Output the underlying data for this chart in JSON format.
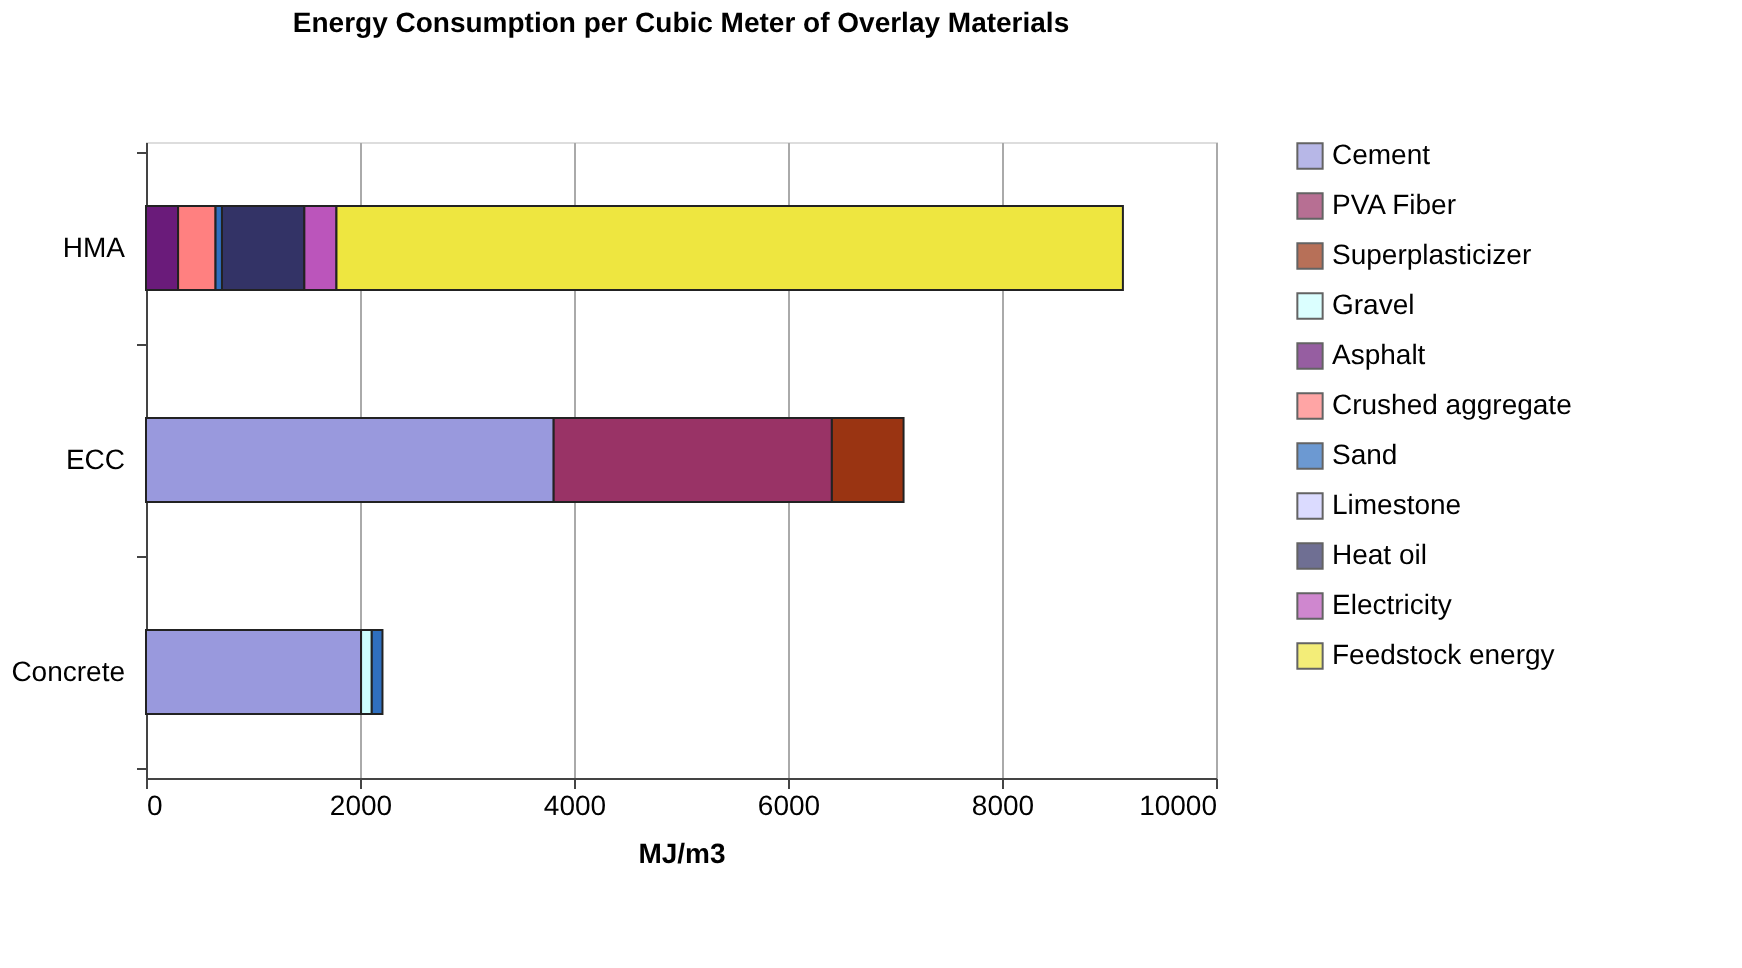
{
  "chart_data": {
    "type": "bar",
    "orientation": "horizontal",
    "stacked": true,
    "title": "Energy Consumption per Cubic Meter of Overlay Materials",
    "xlabel": "MJ/m3",
    "categories": [
      "HMA",
      "ECC",
      "Concrete"
    ],
    "series": [
      {
        "name": "Cement",
        "color": "#9999dd",
        "values": [
          null,
          3810,
          2010
        ]
      },
      {
        "name": "PVA Fiber",
        "color": "#993366",
        "values": [
          null,
          2600,
          null
        ]
      },
      {
        "name": "Superplasticizer",
        "color": "#9a3412",
        "values": [
          null,
          670,
          null
        ]
      },
      {
        "name": "Gravel",
        "color": "#ccffff",
        "values": [
          null,
          null,
          100
        ]
      },
      {
        "name": "Asphalt",
        "color": "#6a1b7a",
        "values": [
          300,
          null,
          null
        ]
      },
      {
        "name": "Crushed aggregate",
        "color": "#ff8080",
        "values": [
          350,
          null,
          null
        ]
      },
      {
        "name": "Sand",
        "color": "#2f6fbf",
        "values": [
          60,
          null,
          100
        ]
      },
      {
        "name": "Limestone",
        "color": "#ccccff",
        "values": [
          null,
          null,
          null
        ]
      },
      {
        "name": "Heat oil",
        "color": "#333366",
        "values": [
          770,
          null,
          null
        ]
      },
      {
        "name": "Electricity",
        "color": "#bb55bb",
        "values": [
          300,
          null,
          null
        ]
      },
      {
        "name": "Feedstock energy",
        "color": "#eee640",
        "values": [
          7350,
          null,
          null
        ]
      }
    ],
    "xlim": [
      0,
      10000
    ],
    "xticks": [
      0,
      2000,
      4000,
      6000,
      8000,
      10000
    ],
    "grid": "x",
    "legend": "right"
  }
}
